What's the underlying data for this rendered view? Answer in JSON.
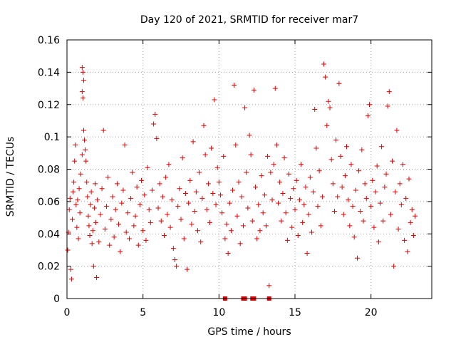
{
  "chart_data": {
    "type": "scatter",
    "title": "Day 120 of 2021, SRMTID for receiver mar7",
    "xlabel": "GPS time / hours",
    "ylabel": "SRMTID / TECUs",
    "xlim": [
      0,
      24
    ],
    "ylim": [
      0,
      0.16
    ],
    "xticks": [
      0,
      5,
      10,
      15,
      20
    ],
    "xtick_labels": [
      "0",
      "5",
      "10",
      "15",
      "20"
    ],
    "yticks": [
      0,
      0.02,
      0.04,
      0.06,
      0.08,
      0.1,
      0.12,
      0.14,
      0.16
    ],
    "ytick_labels": [
      "0",
      "0.02",
      "0.04",
      "0.06",
      "0.08",
      "0.1",
      "0.12",
      "0.14",
      "0.16"
    ],
    "grid": true,
    "marker": "plus",
    "color": "#e00000",
    "series": [
      {
        "name": "SRMTID",
        "points": [
          [
            0.05,
            0.03
          ],
          [
            0.1,
            0.041
          ],
          [
            0.15,
            0.055
          ],
          [
            0.2,
            0.062
          ],
          [
            0.25,
            0.018
          ],
          [
            0.3,
            0.012
          ],
          [
            0.35,
            0.049
          ],
          [
            0.4,
            0.066
          ],
          [
            0.45,
            0.072
          ],
          [
            0.5,
            0.085
          ],
          [
            0.55,
            0.095
          ],
          [
            0.6,
            0.058
          ],
          [
            0.65,
            0.044
          ],
          [
            0.7,
            0.061
          ],
          [
            0.75,
            0.037
          ],
          [
            0.8,
            0.068
          ],
          [
            0.85,
            0.053
          ],
          [
            0.9,
            0.077
          ],
          [
            1.0,
            0.143
          ],
          [
            1.05,
            0.14
          ],
          [
            1.1,
            0.135
          ],
          [
            1.0,
            0.128
          ],
          [
            1.05,
            0.124
          ],
          [
            1.1,
            0.104
          ],
          [
            1.15,
            0.098
          ],
          [
            1.2,
            0.092
          ],
          [
            1.25,
            0.085
          ],
          [
            1.0,
            0.089
          ],
          [
            1.3,
            0.072
          ],
          [
            1.35,
            0.063
          ],
          [
            1.4,
            0.051
          ],
          [
            1.45,
            0.045
          ],
          [
            1.5,
            0.039
          ],
          [
            1.55,
            0.058
          ],
          [
            1.6,
            0.066
          ],
          [
            1.65,
            0.034
          ],
          [
            1.7,
            0.042
          ],
          [
            1.75,
            0.02
          ],
          [
            1.8,
            0.056
          ],
          [
            1.85,
            0.071
          ],
          [
            1.9,
            0.047
          ],
          [
            1.95,
            0.013
          ],
          [
            2.0,
            0.061
          ],
          [
            2.1,
            0.035
          ],
          [
            2.2,
            0.052
          ],
          [
            2.3,
            0.068
          ],
          [
            2.4,
            0.104
          ],
          [
            2.5,
            0.043
          ],
          [
            2.6,
            0.057
          ],
          [
            2.7,
            0.075
          ],
          [
            2.8,
            0.033
          ],
          [
            2.9,
            0.049
          ],
          [
            3.0,
            0.063
          ],
          [
            3.1,
            0.038
          ],
          [
            3.2,
            0.055
          ],
          [
            3.3,
            0.071
          ],
          [
            3.4,
            0.046
          ],
          [
            3.5,
            0.029
          ],
          [
            3.6,
            0.059
          ],
          [
            3.7,
            0.067
          ],
          [
            3.8,
            0.095
          ],
          [
            3.9,
            0.041
          ],
          [
            4.0,
            0.053
          ],
          [
            4.1,
            0.037
          ],
          [
            4.2,
            0.062
          ],
          [
            4.3,
            0.078
          ],
          [
            4.4,
            0.045
          ],
          [
            4.5,
            0.051
          ],
          [
            4.6,
            0.069
          ],
          [
            4.7,
            0.033
          ],
          [
            4.8,
            0.058
          ],
          [
            4.9,
            0.073
          ],
          [
            5.0,
            0.042
          ],
          [
            5.1,
            0.064
          ],
          [
            5.2,
            0.036
          ],
          [
            5.3,
            0.081
          ],
          [
            5.4,
            0.055
          ],
          [
            5.5,
            0.047
          ],
          [
            5.6,
            0.067
          ],
          [
            5.7,
            0.108
          ],
          [
            5.8,
            0.114
          ],
          [
            5.9,
            0.099
          ],
          [
            6.0,
            0.056
          ],
          [
            6.1,
            0.071
          ],
          [
            6.2,
            0.048
          ],
          [
            6.3,
            0.063
          ],
          [
            6.4,
            0.039
          ],
          [
            6.5,
            0.075
          ],
          [
            6.6,
            0.052
          ],
          [
            6.7,
            0.083
          ],
          [
            6.8,
            0.044
          ],
          [
            6.9,
            0.061
          ],
          [
            7.0,
            0.031
          ],
          [
            7.1,
            0.024
          ],
          [
            7.2,
            0.02
          ],
          [
            7.3,
            0.057
          ],
          [
            7.4,
            0.068
          ],
          [
            7.5,
            0.049
          ],
          [
            7.6,
            0.087
          ],
          [
            7.7,
            0.037
          ],
          [
            7.8,
            0.065
          ],
          [
            7.9,
            0.018
          ],
          [
            8.0,
            0.059
          ],
          [
            8.1,
            0.073
          ],
          [
            8.2,
            0.046
          ],
          [
            8.3,
            0.097
          ],
          [
            8.4,
            0.054
          ],
          [
            8.5,
            0.066
          ],
          [
            8.6,
            0.042
          ],
          [
            8.7,
            0.078
          ],
          [
            8.8,
            0.035
          ],
          [
            8.9,
            0.062
          ],
          [
            9.0,
            0.107
          ],
          [
            9.1,
            0.089
          ],
          [
            9.2,
            0.055
          ],
          [
            9.3,
            0.071
          ],
          [
            9.4,
            0.047
          ],
          [
            9.5,
            0.093
          ],
          [
            9.6,
            0.065
          ],
          [
            9.7,
            0.123
          ],
          [
            9.8,
            0.058
          ],
          [
            9.9,
            0.081
          ],
          [
            10.0,
            0.072
          ],
          [
            10.1,
            0.064
          ],
          [
            10.2,
            0.053
          ],
          [
            10.3,
            0.088
          ],
          [
            10.4,
            0.037
          ],
          [
            10.5,
            0.046
          ],
          [
            10.6,
            0.028
          ],
          [
            10.7,
            0.059
          ],
          [
            10.8,
            0.042
          ],
          [
            10.9,
            0.067
          ],
          [
            11.0,
            0.132
          ],
          [
            11.1,
            0.095
          ],
          [
            11.2,
            0.051
          ],
          [
            11.3,
            0.072
          ],
          [
            11.4,
            0.034
          ],
          [
            11.5,
            0.063
          ],
          [
            11.6,
            0.045
          ],
          [
            11.7,
            0.118
          ],
          [
            11.8,
            0.078
          ],
          [
            11.9,
            0.056
          ],
          [
            12.0,
            0.101
          ],
          [
            12.1,
            0.089
          ],
          [
            12.2,
            0.048
          ],
          [
            12.3,
            0.129
          ],
          [
            12.4,
            0.069
          ],
          [
            12.5,
            0.037
          ],
          [
            12.6,
            0.058
          ],
          [
            12.7,
            0.042
          ],
          [
            12.8,
            0.076
          ],
          [
            12.9,
            0.053
          ],
          [
            13.0,
            0.064
          ],
          [
            13.1,
            0.045
          ],
          [
            13.2,
            0.088
          ],
          [
            13.3,
            0.008
          ],
          [
            13.4,
            0.078
          ],
          [
            13.5,
            0.061
          ],
          [
            13.6,
            0.083
          ],
          [
            13.7,
            0.13
          ],
          [
            13.8,
            0.095
          ],
          [
            13.9,
            0.059
          ],
          [
            14.0,
            0.072
          ],
          [
            14.1,
            0.048
          ],
          [
            14.2,
            0.065
          ],
          [
            14.3,
            0.087
          ],
          [
            14.4,
            0.053
          ],
          [
            14.5,
            0.036
          ],
          [
            14.6,
            0.077
          ],
          [
            14.7,
            0.062
          ],
          [
            14.8,
            0.044
          ],
          [
            14.9,
            0.068
          ],
          [
            15.0,
            0.055
          ],
          [
            15.1,
            0.073
          ],
          [
            15.2,
            0.039
          ],
          [
            15.3,
            0.061
          ],
          [
            15.4,
            0.083
          ],
          [
            15.5,
            0.047
          ],
          [
            15.6,
            0.058
          ],
          [
            15.7,
            0.069
          ],
          [
            15.8,
            0.028
          ],
          [
            15.9,
            0.052
          ],
          [
            16.0,
            0.075
          ],
          [
            16.1,
            0.041
          ],
          [
            16.2,
            0.066
          ],
          [
            16.3,
            0.117
          ],
          [
            16.4,
            0.093
          ],
          [
            16.5,
            0.057
          ],
          [
            16.6,
            0.079
          ],
          [
            16.7,
            0.045
          ],
          [
            16.8,
            0.063
          ],
          [
            16.9,
            0.145
          ],
          [
            17.0,
            0.137
          ],
          [
            17.1,
            0.107
          ],
          [
            17.2,
            0.122
          ],
          [
            17.3,
            0.118
          ],
          [
            17.4,
            0.086
          ],
          [
            17.5,
            0.071
          ],
          [
            17.6,
            0.054
          ],
          [
            17.7,
            0.098
          ],
          [
            17.8,
            0.063
          ],
          [
            17.9,
            0.133
          ],
          [
            18.0,
            0.088
          ],
          [
            18.1,
            0.069
          ],
          [
            18.2,
            0.052
          ],
          [
            18.3,
            0.076
          ],
          [
            18.4,
            0.094
          ],
          [
            18.5,
            0.061
          ],
          [
            18.6,
            0.045
          ],
          [
            18.7,
            0.083
          ],
          [
            18.8,
            0.057
          ],
          [
            18.9,
            0.038
          ],
          [
            19.0,
            0.067
          ],
          [
            19.1,
            0.025
          ],
          [
            19.2,
            0.079
          ],
          [
            19.3,
            0.054
          ],
          [
            19.4,
            0.092
          ],
          [
            19.5,
            0.048
          ],
          [
            19.6,
            0.071
          ],
          [
            19.7,
            0.062
          ],
          [
            19.8,
            0.113
          ],
          [
            19.9,
            0.12
          ],
          [
            20.0,
            0.057
          ],
          [
            20.1,
            0.073
          ],
          [
            20.2,
            0.044
          ],
          [
            20.3,
            0.066
          ],
          [
            20.4,
            0.082
          ],
          [
            20.5,
            0.035
          ],
          [
            20.6,
            0.059
          ],
          [
            20.7,
            0.094
          ],
          [
            20.8,
            0.048
          ],
          [
            20.9,
            0.069
          ],
          [
            21.0,
            0.077
          ],
          [
            21.1,
            0.119
          ],
          [
            21.2,
            0.128
          ],
          [
            21.3,
            0.052
          ],
          [
            21.4,
            0.085
          ],
          [
            21.5,
            0.02
          ],
          [
            21.6,
            0.066
          ],
          [
            21.7,
            0.104
          ],
          [
            21.8,
            0.043
          ],
          [
            21.9,
            0.071
          ],
          [
            22.0,
            0.058
          ],
          [
            22.1,
            0.083
          ],
          [
            22.2,
            0.036
          ],
          [
            22.3,
            0.062
          ],
          [
            22.4,
            0.029
          ],
          [
            22.5,
            0.074
          ],
          [
            22.6,
            0.047
          ],
          [
            22.7,
            0.055
          ],
          [
            22.8,
            0.039
          ],
          [
            22.9,
            0.051
          ],
          [
            10.4,
            0.0
          ],
          [
            11.6,
            0.0
          ],
          [
            11.7,
            0.0
          ],
          [
            12.2,
            0.0
          ],
          [
            12.3,
            0.0
          ],
          [
            13.3,
            0.0
          ]
        ]
      }
    ]
  }
}
